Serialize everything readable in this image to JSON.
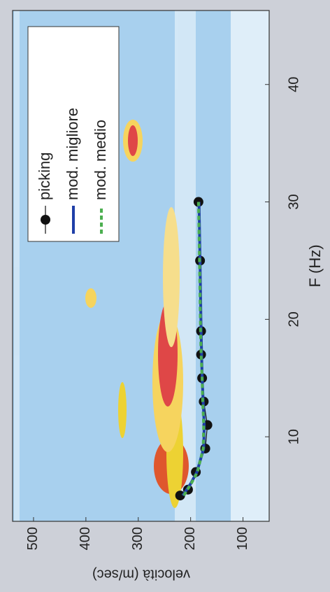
{
  "chart_data": {
    "type": "line",
    "x_label": "F (Hz)",
    "y_label": "velocità (m/sec)",
    "xlim": [
      2.8,
      46.3
    ],
    "xticks": [
      10,
      20,
      30,
      40
    ],
    "ylim": [
      50,
      540
    ],
    "yticks": [
      100,
      200,
      300,
      400,
      500
    ],
    "legend": "upper right",
    "rotation": -90,
    "series": [
      {
        "name": "picking",
        "color": "#111111",
        "style": "marker",
        "x": [
          5,
          5.5,
          7,
          9,
          11,
          13,
          15,
          17,
          19,
          25,
          30
        ],
        "values": [
          220,
          205,
          190,
          172,
          168,
          175,
          178,
          180,
          180,
          182,
          185
        ]
      },
      {
        "name": "mod. migliore",
        "color": "#1f3fa8",
        "style": "solid",
        "x": [
          5,
          6,
          7,
          9,
          11,
          13,
          15,
          17,
          19,
          25,
          30
        ],
        "values": [
          215,
          200,
          188,
          175,
          174,
          176,
          178,
          179,
          180,
          182,
          184
        ]
      },
      {
        "name": "mod. medio",
        "color": "#4caf50",
        "style": "dashed",
        "x": [
          5,
          6,
          7,
          9,
          11,
          13,
          15,
          17,
          19,
          25,
          30
        ],
        "values": [
          213,
          199,
          187,
          176,
          175,
          177,
          178,
          180,
          181,
          183,
          185
        ]
      }
    ]
  }
}
